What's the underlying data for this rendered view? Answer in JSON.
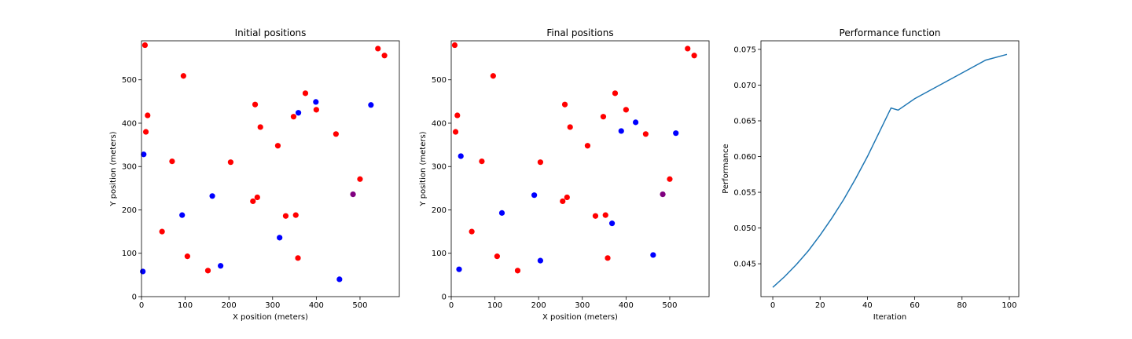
{
  "chart_data": [
    {
      "type": "scatter",
      "title": "Initial positions",
      "xlabel": "X position (meters)",
      "ylabel": "Y position (meters)",
      "xlim": [
        0,
        590
      ],
      "ylim": [
        0,
        590
      ],
      "xticks": [
        0,
        100,
        200,
        300,
        400,
        500
      ],
      "yticks": [
        0,
        100,
        200,
        300,
        400,
        500
      ],
      "grid": false,
      "series": [
        {
          "color": "#ff0000",
          "points": [
            [
              8,
              580
            ],
            [
              14,
              418
            ],
            [
              10,
              380
            ],
            [
              96,
              509
            ],
            [
              70,
              312
            ],
            [
              47,
              150
            ],
            [
              105,
              93
            ],
            [
              152,
              60
            ],
            [
              204,
              310
            ],
            [
              260,
              443
            ],
            [
              272,
              391
            ],
            [
              312,
              348
            ],
            [
              255,
              220
            ],
            [
              265,
              229
            ],
            [
              330,
              186
            ],
            [
              353,
              188
            ],
            [
              358,
              89
            ],
            [
              348,
              415
            ],
            [
              375,
              469
            ],
            [
              400,
              431
            ],
            [
              445,
              375
            ],
            [
              500,
              271
            ],
            [
              541,
              572
            ],
            [
              556,
              556
            ]
          ]
        },
        {
          "color": "#0000ff",
          "points": [
            [
              5,
              328
            ],
            [
              3,
              58
            ],
            [
              93,
              188
            ],
            [
              162,
              232
            ],
            [
              181,
              71
            ],
            [
              316,
              136
            ],
            [
              359,
              424
            ],
            [
              399,
              449
            ],
            [
              453,
              40
            ],
            [
              525,
              442
            ]
          ]
        },
        {
          "color": "#800080",
          "points": [
            [
              484,
              236
            ]
          ]
        }
      ]
    },
    {
      "type": "scatter",
      "title": "Final positions",
      "xlabel": "X position (meters)",
      "ylabel": "Y position (meters)",
      "xlim": [
        0,
        590
      ],
      "ylim": [
        0,
        590
      ],
      "xticks": [
        0,
        100,
        200,
        300,
        400,
        500
      ],
      "yticks": [
        0,
        100,
        200,
        300,
        400,
        500
      ],
      "grid": false,
      "series": [
        {
          "color": "#ff0000",
          "points": [
            [
              8,
              580
            ],
            [
              14,
              418
            ],
            [
              10,
              380
            ],
            [
              96,
              509
            ],
            [
              70,
              312
            ],
            [
              47,
              150
            ],
            [
              105,
              93
            ],
            [
              152,
              60
            ],
            [
              204,
              310
            ],
            [
              260,
              443
            ],
            [
              272,
              391
            ],
            [
              312,
              348
            ],
            [
              255,
              220
            ],
            [
              265,
              229
            ],
            [
              330,
              186
            ],
            [
              353,
              188
            ],
            [
              358,
              89
            ],
            [
              348,
              415
            ],
            [
              375,
              469
            ],
            [
              400,
              431
            ],
            [
              445,
              375
            ],
            [
              500,
              271
            ],
            [
              541,
              572
            ],
            [
              556,
              556
            ]
          ]
        },
        {
          "color": "#0000ff",
          "points": [
            [
              22,
              324
            ],
            [
              18,
              63
            ],
            [
              116,
              193
            ],
            [
              190,
              234
            ],
            [
              204,
              83
            ],
            [
              368,
              169
            ],
            [
              389,
              382
            ],
            [
              422,
              402
            ],
            [
              462,
              96
            ],
            [
              514,
              377
            ]
          ]
        },
        {
          "color": "#800080",
          "points": [
            [
              484,
              236
            ]
          ]
        }
      ]
    },
    {
      "type": "line",
      "title": "Performance function",
      "xlabel": "Iteration",
      "ylabel": "Performance",
      "xlim": [
        -5,
        104
      ],
      "ylim": [
        0.0404,
        0.0762
      ],
      "xticks": [
        0,
        20,
        40,
        60,
        80,
        100
      ],
      "yticks": [
        0.045,
        0.05,
        0.055,
        0.06,
        0.065,
        0.07,
        0.075
      ],
      "ytick_labels": [
        "0.045",
        "0.050",
        "0.055",
        "0.060",
        "0.065",
        "0.070",
        "0.075"
      ],
      "grid": false,
      "series": [
        {
          "color": "#1f77b4",
          "x": [
            0,
            5,
            10,
            15,
            20,
            25,
            30,
            35,
            40,
            45,
            50,
            53,
            60,
            70,
            80,
            90,
            99
          ],
          "y": [
            0.0417,
            0.0432,
            0.0449,
            0.0468,
            0.049,
            0.0514,
            0.054,
            0.0569,
            0.06,
            0.0634,
            0.0668,
            0.0665,
            0.0681,
            0.0699,
            0.0717,
            0.0735,
            0.0743
          ]
        }
      ]
    }
  ]
}
